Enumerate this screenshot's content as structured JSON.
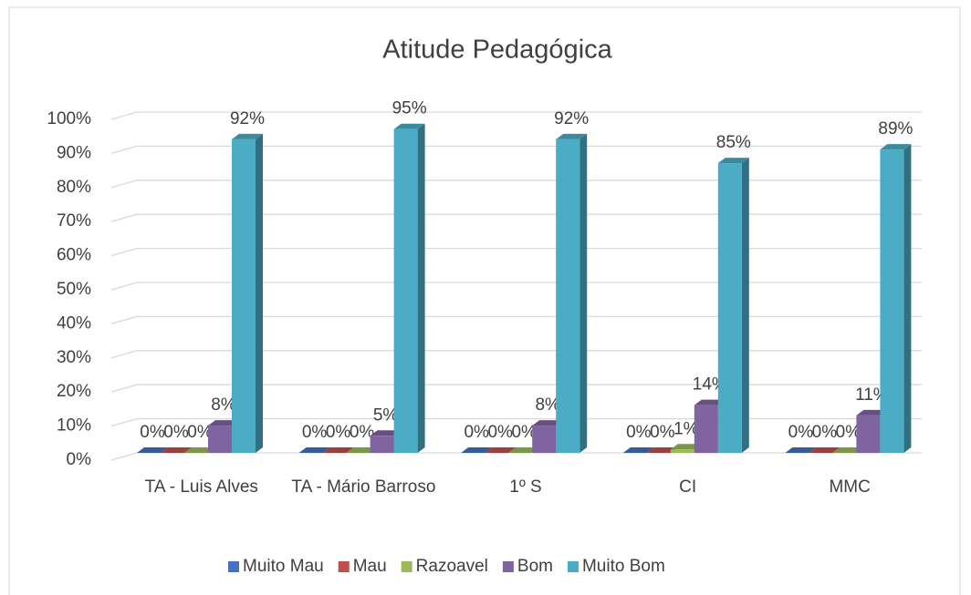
{
  "chart_data": {
    "type": "bar3d",
    "title": "Atitude Pedagógica",
    "categories": [
      "TA - Luis Alves",
      "TA - Mário Barroso",
      "1º S",
      "CI",
      "MMC"
    ],
    "series": [
      {
        "name": "Muito Mau",
        "color": "#4472c4",
        "values": [
          0,
          0,
          0,
          0,
          0
        ],
        "value_labels": [
          "0%",
          "0%",
          "0%",
          "0%",
          "0%"
        ]
      },
      {
        "name": "Mau",
        "color": "#c0504d",
        "values": [
          0,
          0,
          0,
          0,
          0
        ],
        "value_labels": [
          "0%",
          "0%",
          "0%",
          "0%",
          "0%"
        ]
      },
      {
        "name": "Razoavel",
        "color": "#9bbb59",
        "values": [
          0,
          0,
          0,
          1,
          0
        ],
        "value_labels": [
          "0%",
          "0%",
          "0%",
          "1%",
          "0%"
        ]
      },
      {
        "name": "Bom",
        "color": "#8064a2",
        "values": [
          8,
          5,
          8,
          14,
          11
        ],
        "value_labels": [
          "8%",
          "5%",
          "8%",
          "14%",
          "11%"
        ]
      },
      {
        "name": "Muito Bom",
        "color": "#4bacc6",
        "values": [
          92,
          95,
          92,
          85,
          89
        ],
        "value_labels": [
          "92%",
          "95%",
          "92%",
          "85%",
          "89%"
        ]
      }
    ],
    "ylim": [
      0,
      100
    ],
    "yticks": [
      {
        "value": 0,
        "label": "0%"
      },
      {
        "value": 10,
        "label": "10%"
      },
      {
        "value": 20,
        "label": "20%"
      },
      {
        "value": 30,
        "label": "30%"
      },
      {
        "value": 40,
        "label": "40%"
      },
      {
        "value": 50,
        "label": "50%"
      },
      {
        "value": 60,
        "label": "60%"
      },
      {
        "value": 70,
        "label": "70%"
      },
      {
        "value": 80,
        "label": "80%"
      },
      {
        "value": 90,
        "label": "90%"
      },
      {
        "value": 100,
        "label": "100%"
      }
    ],
    "grid": true,
    "legend": "bottom"
  }
}
